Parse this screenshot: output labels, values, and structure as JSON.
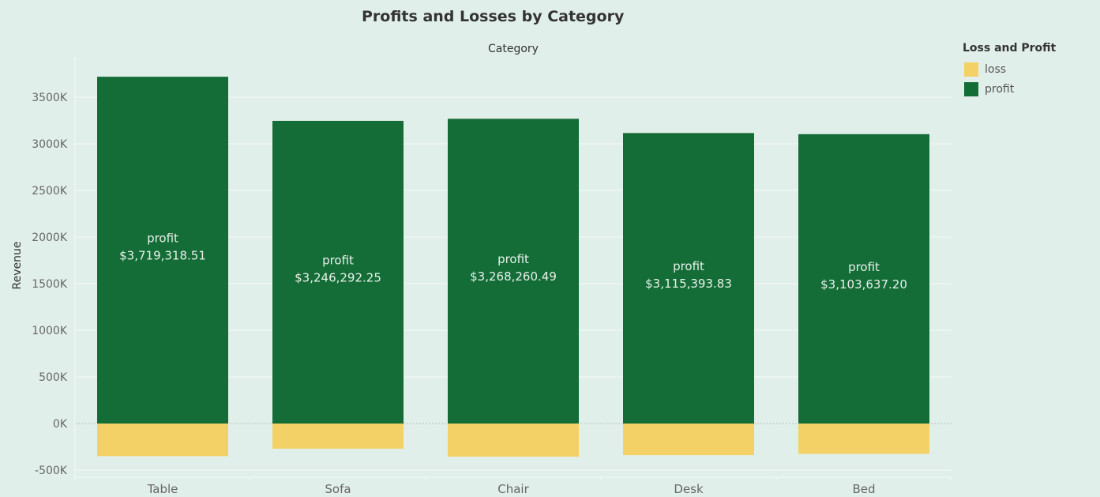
{
  "chart_data": {
    "type": "bar",
    "stacked": true,
    "title": "Profits and Losses by Category",
    "column_header": "Category",
    "ylabel": "Revenue",
    "xlabel": "",
    "ylim": [
      -580000,
      3950000
    ],
    "yticks": [
      -500000,
      0,
      500000,
      1000000,
      1500000,
      2000000,
      2500000,
      3000000,
      3500000
    ],
    "ytick_labels": [
      "-500K",
      "0K",
      "500K",
      "1000K",
      "1500K",
      "2000K",
      "2500K",
      "3000K",
      "3500K"
    ],
    "categories": [
      "Table",
      "Sofa",
      "Chair",
      "Desk",
      "Bed"
    ],
    "legend_title": "Loss and Profit",
    "legend_position": "right",
    "grid": true,
    "series": [
      {
        "name": "loss",
        "color": "#f4d166",
        "values": [
          -350000,
          -270000,
          -355000,
          -340000,
          -325000
        ]
      },
      {
        "name": "profit",
        "color": "#146c36",
        "values": [
          3719318.51,
          3246292.25,
          3268260.49,
          3115393.83,
          3103637.2
        ],
        "labels": [
          "$3,719,318.51",
          "$3,246,292.25",
          "$3,268,260.49",
          "$3,115,393.83",
          "$3,103,637.20"
        ]
      }
    ]
  }
}
